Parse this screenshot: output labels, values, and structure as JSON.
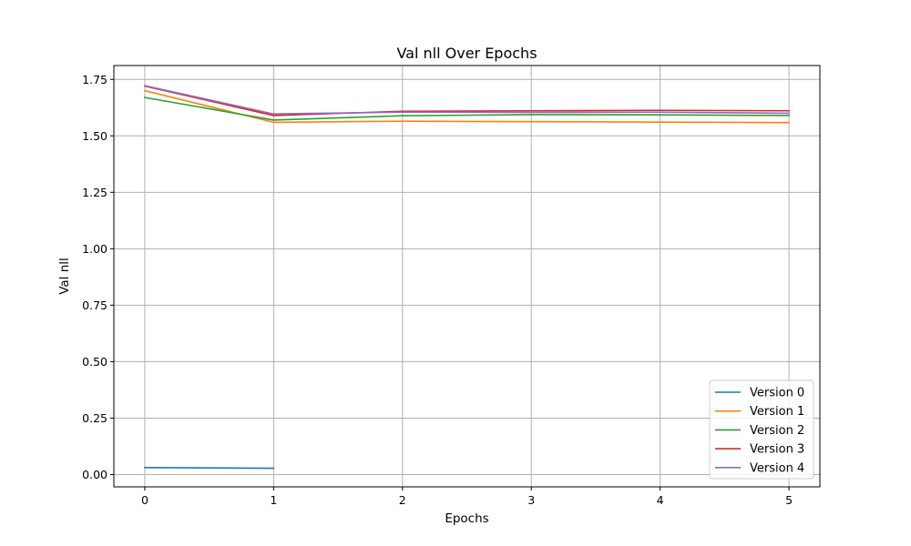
{
  "chart_data": {
    "type": "line",
    "title": "Val nll Over Epochs",
    "xlabel": "Epochs",
    "ylabel": "Val nll",
    "xlim": [
      -0.24,
      5.24
    ],
    "ylim": [
      -0.0545,
      1.8115
    ],
    "x_ticks": [
      0,
      1,
      2,
      3,
      4,
      5
    ],
    "x_tick_labels": [
      "0",
      "1",
      "2",
      "3",
      "4",
      "5"
    ],
    "y_ticks": [
      0.0,
      0.25,
      0.5,
      0.75,
      1.0,
      1.25,
      1.5,
      1.75
    ],
    "y_tick_labels": [
      "0.00",
      "0.25",
      "0.50",
      "0.75",
      "1.00",
      "1.25",
      "1.50",
      "1.75"
    ],
    "grid": true,
    "legend_position": "bottom-right",
    "series": [
      {
        "name": "Version 0",
        "color": "#1f77b4",
        "x": [
          0,
          1
        ],
        "values": [
          0.031,
          0.028
        ]
      },
      {
        "name": "Version 1",
        "color": "#ff7f0e",
        "x": [
          0,
          1,
          2,
          3,
          4,
          5
        ],
        "values": [
          1.7,
          1.56,
          1.565,
          1.563,
          1.561,
          1.559
        ]
      },
      {
        "name": "Version 2",
        "color": "#2ca02c",
        "x": [
          0,
          1,
          2,
          3,
          4,
          5
        ],
        "values": [
          1.67,
          1.57,
          1.589,
          1.594,
          1.593,
          1.59
        ]
      },
      {
        "name": "Version 3",
        "color": "#d62728",
        "x": [
          0,
          1,
          2,
          3,
          4,
          5
        ],
        "values": [
          1.72,
          1.59,
          1.609,
          1.611,
          1.613,
          1.611
        ]
      },
      {
        "name": "Version 4",
        "color": "#9467bd",
        "x": [
          0,
          1,
          2,
          3,
          4,
          5
        ],
        "values": [
          1.722,
          1.597,
          1.605,
          1.604,
          1.605,
          1.6
        ]
      }
    ]
  }
}
